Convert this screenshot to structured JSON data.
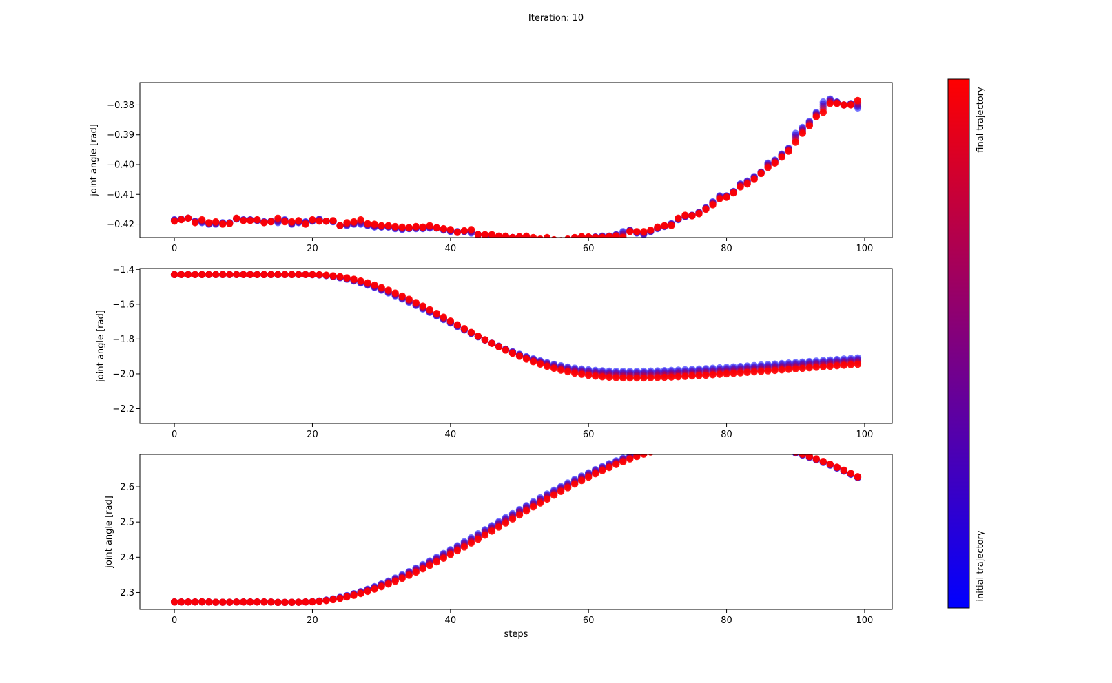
{
  "figure": {
    "title": "Iteration: 10"
  },
  "colorbar": {
    "top_label": "final trajectory",
    "bottom_label": "initial trajectory",
    "color_top": "#ff0000",
    "color_bottom": "#0000ff"
  },
  "chart_data": [
    {
      "type": "scatter",
      "title": "",
      "xlabel": "",
      "ylabel": "joint angle [rad]",
      "xlim": [
        -5,
        104
      ],
      "ylim": [
        -0.4245,
        -0.3725
      ],
      "xticks": [
        0,
        20,
        40,
        60,
        80,
        100
      ],
      "yticks": [
        -0.42,
        -0.41,
        -0.4,
        -0.39,
        -0.38
      ],
      "ytick_labels": [
        "−0.42",
        "−0.41",
        "−0.40",
        "−0.39",
        "−0.38"
      ],
      "grid": false,
      "series": [
        {
          "color": "#0000ff",
          "x_start": 0,
          "x_step": 1,
          "values": [
            -0.4185,
            -0.4183,
            -0.418,
            -0.419,
            -0.4195,
            -0.42,
            -0.42,
            -0.4195,
            -0.4195,
            -0.4183,
            -0.4185,
            -0.4185,
            -0.4188,
            -0.4192,
            -0.419,
            -0.4195,
            -0.4185,
            -0.42,
            -0.4195,
            -0.4192,
            -0.419,
            -0.4183,
            -0.419,
            -0.4192,
            -0.4205,
            -0.4205,
            -0.42,
            -0.42,
            -0.4205,
            -0.421,
            -0.421,
            -0.421,
            -0.4215,
            -0.4218,
            -0.4215,
            -0.4215,
            -0.4215,
            -0.4213,
            -0.4213,
            -0.422,
            -0.4225,
            -0.4225,
            -0.4225,
            -0.423,
            -0.4235,
            -0.4238,
            -0.424,
            -0.4243,
            -0.4245,
            -0.4245,
            -0.4245,
            -0.4248,
            -0.4262,
            -0.4255,
            -0.4255,
            -0.4258,
            -0.4258,
            -0.4252,
            -0.4248,
            -0.4245,
            -0.4245,
            -0.4243,
            -0.424,
            -0.424,
            -0.4235,
            -0.4225,
            -0.422,
            -0.423,
            -0.4235,
            -0.4225,
            -0.4215,
            -0.4208,
            -0.4198,
            -0.4185,
            -0.4175,
            -0.417,
            -0.416,
            -0.4145,
            -0.4125,
            -0.4105,
            -0.4105,
            -0.409,
            -0.4065,
            -0.4055,
            -0.404,
            -0.4025,
            -0.3995,
            -0.3985,
            -0.3965,
            -0.3945,
            -0.3895,
            -0.3875,
            -0.3855,
            -0.3825,
            -0.379,
            -0.378,
            -0.379,
            -0.38,
            -0.3795,
            -0.381
          ]
        },
        {
          "color": "#ff0000",
          "x_start": 0,
          "x_step": 1,
          "values": [
            -0.419,
            -0.4185,
            -0.418,
            -0.4195,
            -0.4185,
            -0.4195,
            -0.4192,
            -0.42,
            -0.4198,
            -0.418,
            -0.4188,
            -0.4188,
            -0.4185,
            -0.4195,
            -0.4192,
            -0.418,
            -0.4192,
            -0.4192,
            -0.4188,
            -0.42,
            -0.4185,
            -0.419,
            -0.419,
            -0.4188,
            -0.4205,
            -0.4195,
            -0.4192,
            -0.4185,
            -0.4198,
            -0.42,
            -0.4205,
            -0.4205,
            -0.4208,
            -0.421,
            -0.4212,
            -0.4208,
            -0.421,
            -0.4205,
            -0.4212,
            -0.4215,
            -0.4218,
            -0.4228,
            -0.4222,
            -0.4218,
            -0.4235,
            -0.4235,
            -0.4235,
            -0.424,
            -0.424,
            -0.4245,
            -0.4242,
            -0.424,
            -0.4245,
            -0.425,
            -0.4245,
            -0.4252,
            -0.4255,
            -0.425,
            -0.4245,
            -0.4242,
            -0.4243,
            -0.4245,
            -0.4245,
            -0.4242,
            -0.424,
            -0.4245,
            -0.4225,
            -0.4225,
            -0.4225,
            -0.422,
            -0.421,
            -0.4205,
            -0.4205,
            -0.418,
            -0.417,
            -0.4172,
            -0.4165,
            -0.415,
            -0.4135,
            -0.4115,
            -0.411,
            -0.4095,
            -0.4075,
            -0.4065,
            -0.405,
            -0.403,
            -0.401,
            -0.3995,
            -0.3975,
            -0.3955,
            -0.3925,
            -0.3895,
            -0.387,
            -0.384,
            -0.3825,
            -0.3795,
            -0.3795,
            -0.38,
            -0.38,
            -0.3785
          ]
        }
      ]
    },
    {
      "type": "scatter",
      "title": "",
      "xlabel": "",
      "ylabel": "joint angle [rad]",
      "xlim": [
        -5,
        104
      ],
      "ylim": [
        -2.285,
        -1.395
      ],
      "xticks": [
        0,
        20,
        40,
        60,
        80,
        100
      ],
      "yticks": [
        -2.2,
        -2.0,
        -1.8,
        -1.6,
        -1.4
      ],
      "ytick_labels": [
        "−2.2",
        "−2.0",
        "−1.8",
        "−1.6",
        "−1.4"
      ],
      "grid": false,
      "series": [
        {
          "color": "#0000ff",
          "x_start": 0,
          "x_step": 1,
          "values": [
            -1.43,
            -1.43,
            -1.43,
            -1.43,
            -1.43,
            -1.43,
            -1.43,
            -1.43,
            -1.43,
            -1.43,
            -1.43,
            -1.43,
            -1.43,
            -1.43,
            -1.43,
            -1.43,
            -1.43,
            -1.43,
            -1.43,
            -1.43,
            -1.4305,
            -1.4324,
            -1.436,
            -1.4412,
            -1.4481,
            -1.4565,
            -1.4664,
            -1.4777,
            -1.4904,
            -1.5043,
            -1.5194,
            -1.5354,
            -1.5524,
            -1.5703,
            -1.5888,
            -1.6079,
            -1.6275,
            -1.6475,
            -1.6677,
            -1.688,
            -1.7083,
            -1.7285,
            -1.7485,
            -1.7681,
            -1.7873,
            -1.8059,
            -1.8238,
            -1.841,
            -1.8574,
            -1.8729,
            -1.8875,
            -1.901,
            -1.9136,
            -1.9251,
            -1.9355,
            -1.9449,
            -1.9532,
            -1.9605,
            -1.9667,
            -1.972,
            -1.9763,
            -1.9797,
            -1.9823,
            -1.9841,
            -1.9852,
            -1.9857,
            -1.9858,
            -1.9855,
            -1.9848,
            -1.9838,
            -1.9827,
            -1.9813,
            -1.9797,
            -1.978,
            -1.9761,
            -1.9741,
            -1.972,
            -1.9698,
            -1.9675,
            -1.9651,
            -1.9626,
            -1.9601,
            -1.9575,
            -1.9548,
            -1.9521,
            -1.9493,
            -1.9465,
            -1.9437,
            -1.9408,
            -1.9379,
            -1.935,
            -1.9321,
            -1.9291,
            -1.9262,
            -1.9232,
            -1.9203,
            -1.9173,
            -1.9144,
            -1.9114,
            -1.9085
          ]
        },
        {
          "color": "#ff0000",
          "x_start": 0,
          "x_step": 1,
          "values": [
            -1.43,
            -1.43,
            -1.43,
            -1.43,
            -1.43,
            -1.43,
            -1.43,
            -1.43,
            -1.43,
            -1.43,
            -1.43,
            -1.43,
            -1.43,
            -1.43,
            -1.43,
            -1.43,
            -1.43,
            -1.43,
            -1.43,
            -1.43,
            -1.43,
            -1.4308,
            -1.433,
            -1.4366,
            -1.4417,
            -1.4484,
            -1.4566,
            -1.4663,
            -1.4775,
            -1.4901,
            -1.504,
            -1.5192,
            -1.5356,
            -1.553,
            -1.5715,
            -1.5908,
            -1.6109,
            -1.6316,
            -1.6528,
            -1.6744,
            -1.6963,
            -1.7182,
            -1.7401,
            -1.7619,
            -1.7833,
            -1.8043,
            -1.8248,
            -1.8446,
            -1.8636,
            -1.8818,
            -1.899,
            -1.9152,
            -1.9303,
            -1.9443,
            -1.957,
            -1.9686,
            -1.9789,
            -1.9881,
            -1.9961,
            -2.0029,
            -2.0087,
            -2.0134,
            -2.0172,
            -2.02,
            -2.0221,
            -2.0234,
            -2.024,
            -2.0241,
            -2.0237,
            -2.0229,
            -2.0217,
            -2.0203,
            -2.0186,
            -2.0167,
            -2.0147,
            -2.0125,
            -2.0102,
            -2.0078,
            -2.0053,
            -2.0027,
            -2.0,
            -1.9973,
            -1.9945,
            -1.9917,
            -1.9889,
            -1.986,
            -1.9831,
            -1.9802,
            -1.9773,
            -1.9744,
            -1.9714,
            -1.9685,
            -1.9655,
            -1.9625,
            -1.9596,
            -1.9566,
            -1.9536,
            -1.9506,
            -1.9477,
            -1.9447
          ]
        }
      ]
    },
    {
      "type": "scatter",
      "title": "",
      "xlabel": "steps",
      "ylabel": "joint angle [rad]",
      "xlim": [
        -5,
        104
      ],
      "ylim": [
        2.252,
        2.692
      ],
      "xticks": [
        0,
        20,
        40,
        60,
        80,
        100
      ],
      "yticks": [
        2.3,
        2.4,
        2.5,
        2.6
      ],
      "ytick_labels": [
        "2.3",
        "2.4",
        "2.5",
        "2.6"
      ],
      "grid": false,
      "series": [
        {
          "color": "#0000ff",
          "x_start": 0,
          "x_step": 1,
          "values": [
            2.273,
            2.273,
            2.273,
            2.2732,
            2.2735,
            2.273,
            2.2725,
            2.2725,
            2.2725,
            2.2728,
            2.273,
            2.273,
            2.273,
            2.273,
            2.2728,
            2.272,
            2.272,
            2.2722,
            2.2725,
            2.273,
            2.274,
            2.2758,
            2.2785,
            2.282,
            2.2862,
            2.2911,
            2.2966,
            2.3027,
            2.3094,
            2.3166,
            2.3243,
            2.3325,
            2.3411,
            2.3501,
            2.3595,
            2.3692,
            2.3792,
            2.3895,
            2.4,
            2.4107,
            2.4216,
            2.4327,
            2.4439,
            2.4552,
            2.4666,
            2.4781,
            2.4896,
            2.5011,
            2.5126,
            2.524,
            2.5354,
            2.5467,
            2.5578,
            2.5688,
            2.5797,
            2.5903,
            2.6008,
            2.611,
            2.6209,
            2.6306,
            2.6399,
            2.6489,
            2.6575,
            2.6658,
            2.6737,
            2.6811,
            2.6881,
            2.6946,
            2.7006,
            2.7061,
            2.7111,
            2.7156,
            2.7195,
            2.7229,
            2.7257,
            2.728,
            2.7297,
            2.7308,
            2.7313,
            2.7313,
            2.7307,
            2.7296,
            2.7279,
            2.7257,
            2.723,
            2.7197,
            2.716,
            2.7117,
            2.707,
            2.7018,
            2.6961,
            2.69,
            2.6834,
            2.6764,
            2.669,
            2.6612,
            2.653,
            2.6444,
            2.6355,
            2.6262
          ]
        },
        {
          "color": "#ff0000",
          "x_start": 0,
          "x_step": 1,
          "values": [
            2.273,
            2.273,
            2.273,
            2.2732,
            2.2735,
            2.273,
            2.2725,
            2.2725,
            2.2725,
            2.2728,
            2.273,
            2.273,
            2.273,
            2.273,
            2.2728,
            2.272,
            2.272,
            2.2722,
            2.2725,
            2.273,
            2.2736,
            2.2748,
            2.2768,
            2.2795,
            2.2829,
            2.287,
            2.2917,
            2.297,
            2.3029,
            2.3093,
            2.3163,
            2.3237,
            2.3316,
            2.3399,
            2.3486,
            2.3577,
            2.3671,
            2.3768,
            2.3868,
            2.3971,
            2.4076,
            2.4183,
            2.4292,
            2.4402,
            2.4514,
            2.4627,
            2.4741,
            2.4855,
            2.497,
            2.5085,
            2.5199,
            2.5313,
            2.5427,
            2.5539,
            2.565,
            2.576,
            2.5867,
            2.5973,
            2.6076,
            2.6176,
            2.6274,
            2.6369,
            2.646,
            2.6548,
            2.6632,
            2.6712,
            2.6788,
            2.6859,
            2.6926,
            2.6988,
            2.7045,
            2.7097,
            2.7143,
            2.7184,
            2.7219,
            2.7248,
            2.7272,
            2.729,
            2.7302,
            2.7308,
            2.7308,
            2.7302,
            2.729,
            2.7272,
            2.7249,
            2.722,
            2.7185,
            2.7145,
            2.7099,
            2.7048,
            2.6992,
            2.6931,
            2.6865,
            2.6795,
            2.672,
            2.6641,
            2.6558,
            2.6471,
            2.6381,
            2.6287
          ]
        }
      ]
    }
  ]
}
